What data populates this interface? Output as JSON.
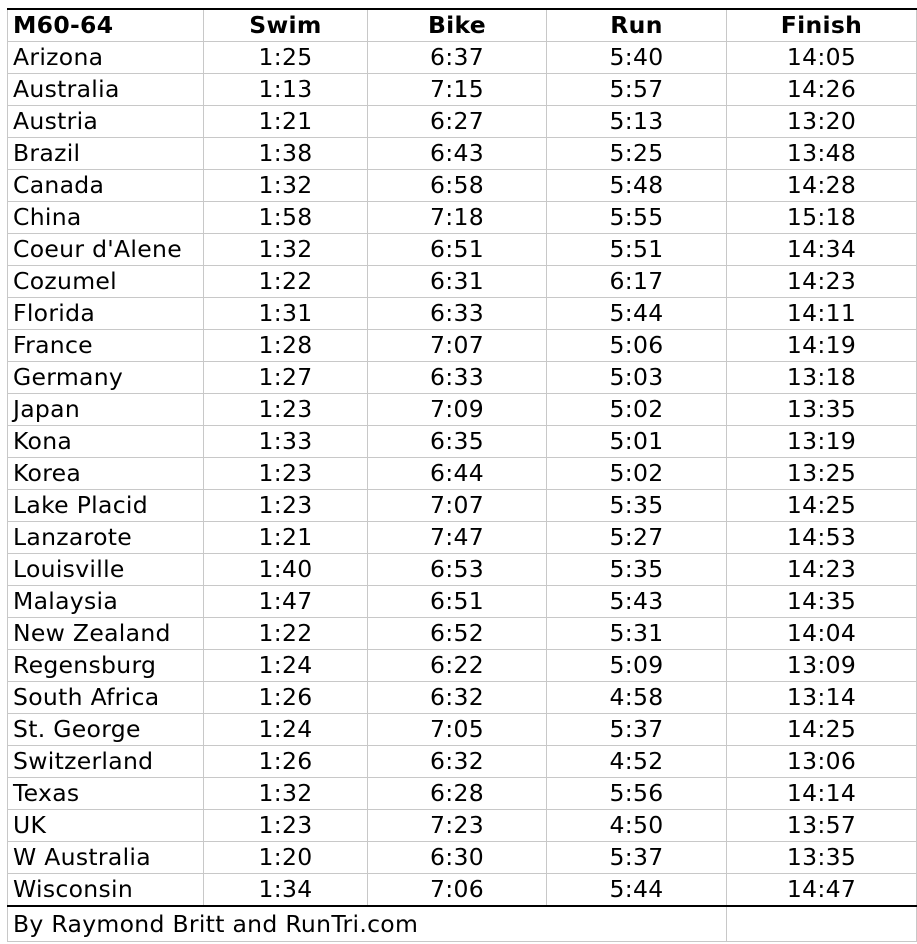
{
  "header": {
    "name": "M60-64",
    "swim": "Swim",
    "bike": "Bike",
    "run": "Run",
    "finish": "Finish"
  },
  "rows": [
    {
      "name": "Arizona",
      "swim": "1:25",
      "bike": "6:37",
      "run": "5:40",
      "finish": "14:05"
    },
    {
      "name": "Australia",
      "swim": "1:13",
      "bike": "7:15",
      "run": "5:57",
      "finish": "14:26"
    },
    {
      "name": "Austria",
      "swim": "1:21",
      "bike": "6:27",
      "run": "5:13",
      "finish": "13:20"
    },
    {
      "name": "Brazil",
      "swim": "1:38",
      "bike": "6:43",
      "run": "5:25",
      "finish": "13:48"
    },
    {
      "name": "Canada",
      "swim": "1:32",
      "bike": "6:58",
      "run": "5:48",
      "finish": "14:28"
    },
    {
      "name": "China",
      "swim": "1:58",
      "bike": "7:18",
      "run": "5:55",
      "finish": "15:18"
    },
    {
      "name": "Coeur d'Alene",
      "swim": "1:32",
      "bike": "6:51",
      "run": "5:51",
      "finish": "14:34"
    },
    {
      "name": "Cozumel",
      "swim": "1:22",
      "bike": "6:31",
      "run": "6:17",
      "finish": "14:23"
    },
    {
      "name": "Florida",
      "swim": "1:31",
      "bike": "6:33",
      "run": "5:44",
      "finish": "14:11"
    },
    {
      "name": "France",
      "swim": "1:28",
      "bike": "7:07",
      "run": "5:06",
      "finish": "14:19"
    },
    {
      "name": "Germany",
      "swim": "1:27",
      "bike": "6:33",
      "run": "5:03",
      "finish": "13:18"
    },
    {
      "name": "Japan",
      "swim": "1:23",
      "bike": "7:09",
      "run": "5:02",
      "finish": "13:35"
    },
    {
      "name": "Kona",
      "swim": "1:33",
      "bike": "6:35",
      "run": "5:01",
      "finish": "13:19"
    },
    {
      "name": "Korea",
      "swim": "1:23",
      "bike": "6:44",
      "run": "5:02",
      "finish": "13:25"
    },
    {
      "name": "Lake Placid",
      "swim": "1:23",
      "bike": "7:07",
      "run": "5:35",
      "finish": "14:25"
    },
    {
      "name": "Lanzarote",
      "swim": "1:21",
      "bike": "7:47",
      "run": "5:27",
      "finish": "14:53"
    },
    {
      "name": "Louisville",
      "swim": "1:40",
      "bike": "6:53",
      "run": "5:35",
      "finish": "14:23"
    },
    {
      "name": "Malaysia",
      "swim": "1:47",
      "bike": "6:51",
      "run": "5:43",
      "finish": "14:35"
    },
    {
      "name": "New Zealand",
      "swim": "1:22",
      "bike": "6:52",
      "run": "5:31",
      "finish": "14:04"
    },
    {
      "name": "Regensburg",
      "swim": "1:24",
      "bike": "6:22",
      "run": "5:09",
      "finish": "13:09"
    },
    {
      "name": "South Africa",
      "swim": "1:26",
      "bike": "6:32",
      "run": "4:58",
      "finish": "13:14"
    },
    {
      "name": "St. George",
      "swim": "1:24",
      "bike": "7:05",
      "run": "5:37",
      "finish": "14:25"
    },
    {
      "name": "Switzerland",
      "swim": "1:26",
      "bike": "6:32",
      "run": "4:52",
      "finish": "13:06"
    },
    {
      "name": "Texas",
      "swim": "1:32",
      "bike": "6:28",
      "run": "5:56",
      "finish": "14:14"
    },
    {
      "name": "UK",
      "swim": "1:23",
      "bike": "7:23",
      "run": "4:50",
      "finish": "13:57"
    },
    {
      "name": "W Australia",
      "swim": "1:20",
      "bike": "6:30",
      "run": "5:37",
      "finish": "13:35"
    },
    {
      "name": "Wisconsin",
      "swim": "1:34",
      "bike": "7:06",
      "run": "5:44",
      "finish": "14:47"
    }
  ],
  "credit": "By Raymond Britt and RunTri.com"
}
